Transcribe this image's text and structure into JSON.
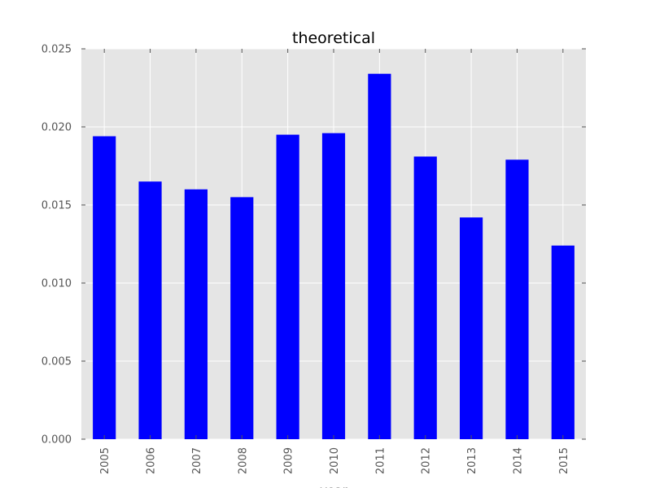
{
  "chart_data": {
    "type": "bar",
    "title": "theoretical",
    "xlabel": "year",
    "ylabel": "",
    "categories": [
      "2005",
      "2006",
      "2007",
      "2008",
      "2009",
      "2010",
      "2011",
      "2012",
      "2013",
      "2014",
      "2015"
    ],
    "values": [
      0.0194,
      0.0165,
      0.016,
      0.0155,
      0.0195,
      0.0196,
      0.0234,
      0.0181,
      0.0142,
      0.0179,
      0.0124
    ],
    "ylim": [
      0,
      0.025
    ],
    "yticks": [
      "0.000",
      "0.005",
      "0.010",
      "0.015",
      "0.020",
      "0.025"
    ],
    "grid": true,
    "legend": "none",
    "colors": {
      "bar": "#0000ff",
      "plot_background": "#e5e5e5",
      "grid": "#ffffff",
      "tick_label": "#555555"
    }
  }
}
